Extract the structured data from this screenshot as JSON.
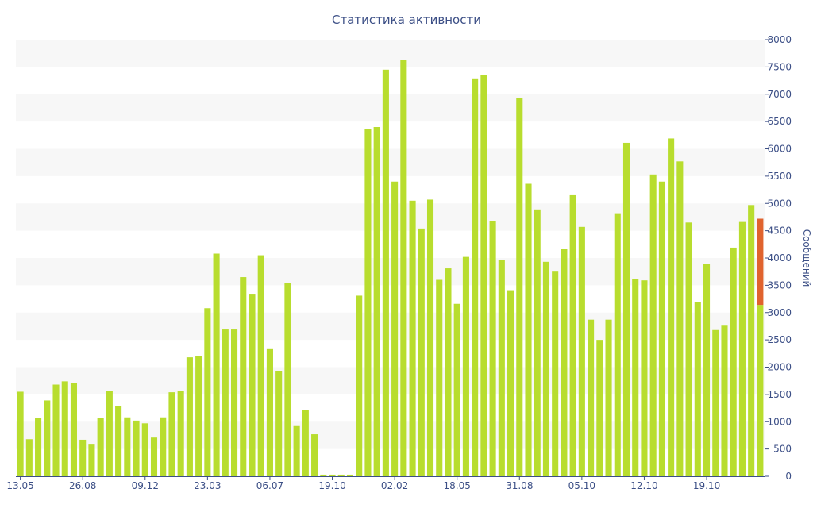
{
  "chart_data": {
    "type": "bar",
    "title": "Статистика активности",
    "xlabel": "",
    "ylabel": "Сообщений",
    "ylim": [
      0,
      8000
    ],
    "y_ticks": [
      0,
      500,
      1000,
      1500,
      2000,
      2500,
      3000,
      3500,
      4000,
      4500,
      5000,
      5500,
      6000,
      6500,
      7000,
      7500,
      8000
    ],
    "y_axis_side": "right",
    "x_tick_labels": [
      "13.05",
      "26.08",
      "09.12",
      "23.03",
      "06.07",
      "19.10",
      "02.02",
      "18.05",
      "31.08",
      "05.10",
      "12.10",
      "19.10"
    ],
    "x_tick_bar_index": [
      0,
      7,
      14,
      21,
      28,
      35,
      42,
      49,
      56,
      63,
      70,
      77
    ],
    "grid": "alternating horizontal bands",
    "colors": {
      "bar": "#b8dd2e",
      "highlight": "#e0632e",
      "band": "#f7f7f7",
      "text": "#3c4f86",
      "axis": "#3c4f86"
    },
    "values": [
      1550,
      680,
      1070,
      1390,
      1680,
      1740,
      1710,
      670,
      580,
      1070,
      1560,
      1290,
      1080,
      1020,
      970,
      710,
      1080,
      1540,
      1570,
      2180,
      2210,
      3080,
      4080,
      2690,
      2690,
      3650,
      3330,
      4050,
      2330,
      1930,
      3540,
      920,
      1210,
      770,
      30,
      30,
      30,
      30,
      3310,
      6370,
      6400,
      7450,
      5400,
      7630,
      5050,
      4540,
      5070,
      3600,
      3810,
      3160,
      4020,
      7290,
      7350,
      4670,
      3960,
      3410,
      6930,
      5360,
      4890,
      3930,
      3750,
      4160,
      5150,
      4570,
      2870,
      2500,
      2870,
      4820,
      6110,
      3610,
      3590,
      5530,
      5400,
      6190,
      5770,
      4650,
      3190,
      3890,
      2680,
      2760,
      4190,
      4660,
      4970,
      3140
    ],
    "highlight_overlay": {
      "index": 83,
      "value": 4720
    }
  }
}
